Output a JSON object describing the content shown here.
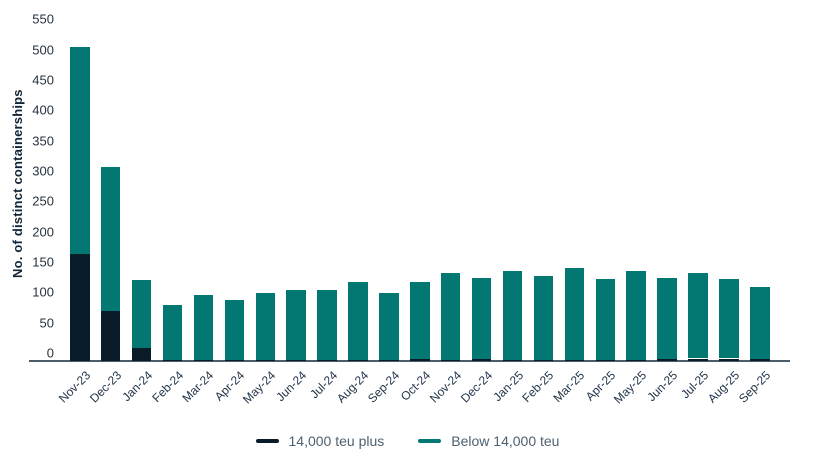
{
  "chart_data": {
    "type": "bar",
    "stacked": true,
    "title": "",
    "xlabel": "",
    "ylabel": "No. of distinct containerships",
    "ylim": [
      0,
      550
    ],
    "ytick_step": 50,
    "grid": false,
    "legend_position": "bottom-center",
    "categories": [
      "Nov-23",
      "Dec-23",
      "Jan-24",
      "Feb-24",
      "Mar-24",
      "Apr-24",
      "May-24",
      "Jun-24",
      "Jul-24",
      "Aug-24",
      "Sep-24",
      "Oct-24",
      "Nov-24",
      "Dec-24",
      "Jan-25",
      "Feb-25",
      "Mar-25",
      "Apr-25",
      "May-25",
      "Jun-25",
      "Jul-25",
      "Aug-25",
      "Sep-25"
    ],
    "series": [
      {
        "name": "14,000 teu plus",
        "color": "#0a1b2a",
        "values": [
          170,
          80,
          20,
          2,
          2,
          1,
          1,
          1,
          2,
          2,
          1,
          3,
          1,
          3,
          1,
          1,
          1,
          1,
          1,
          3,
          4,
          4,
          4
        ]
      },
      {
        "name": "Below 14,000 teu",
        "color": "#037873",
        "values": [
          330,
          230,
          109,
          87,
          103,
          96,
          107,
          112,
          112,
          124,
          107,
          123,
          139,
          129,
          142,
          134,
          147,
          130,
          142,
          129,
          136,
          127,
          114
        ]
      }
    ],
    "totals": [
      500,
      310,
      129,
      89,
      105,
      97,
      108,
      113,
      114,
      126,
      108,
      126,
      140,
      132,
      143,
      135,
      148,
      131,
      143,
      132,
      140,
      131,
      118
    ]
  },
  "colors": {
    "bar_navy": "#0a1b2a",
    "bar_teal": "#037873",
    "axis_line": "#4c5c6a",
    "tick_label": "#26323e",
    "x_label": "#22354a",
    "y_title": "#102538",
    "legend_text": "#4e6170",
    "background": "#ffffff"
  }
}
